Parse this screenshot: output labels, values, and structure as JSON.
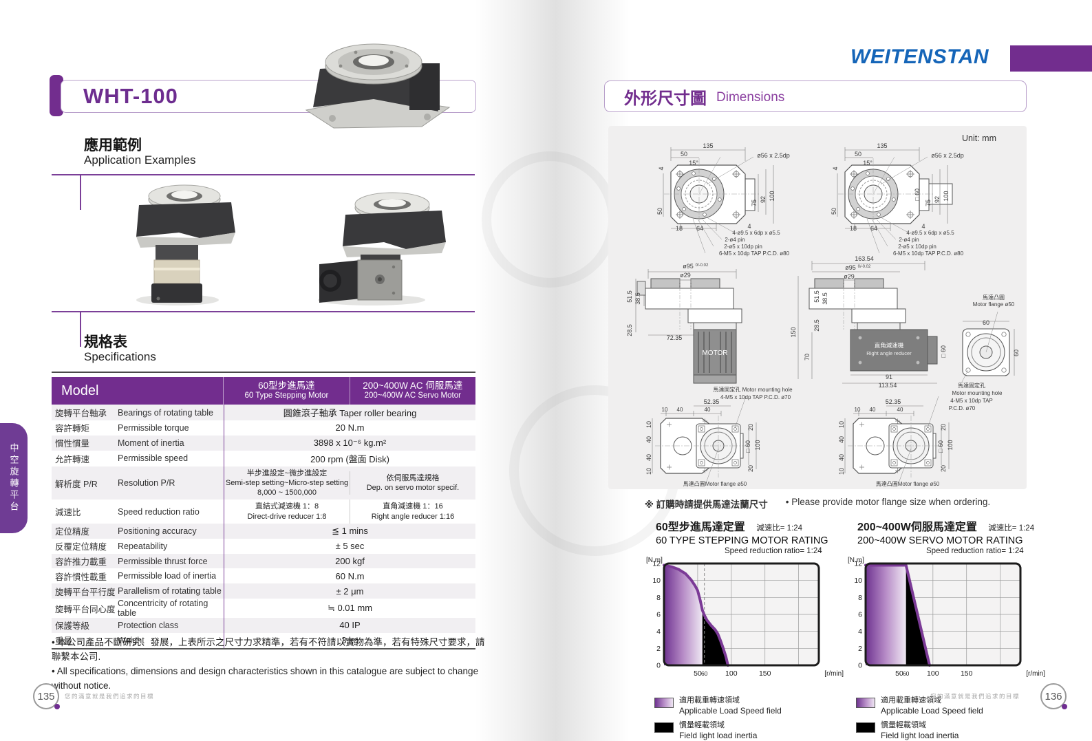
{
  "side_tab": {
    "label": "中空旋轉平台"
  },
  "left_page": {
    "model_title": "WHT-100",
    "app_section": {
      "title_zh": "應用範例",
      "title_en": "Application Examples"
    },
    "spec_section": {
      "title_zh": "規格表",
      "title_en": "Specifications"
    },
    "spec_table": {
      "header": {
        "model": "Model",
        "col1_zh": "60型步進馬達",
        "col1_en": "60 Type Stepping Motor",
        "col2_zh": "200~400W AC 伺服馬達",
        "col2_en": "200~400W AC Servo Motor"
      },
      "rows": [
        {
          "zh": "旋轉平台軸承",
          "en": "Bearings of rotating table",
          "value": "圓錐滾子軸承 Taper roller bearing"
        },
        {
          "zh": "容許轉矩",
          "en": "Permissible torque",
          "value": "20 N.m"
        },
        {
          "zh": "慣性慣量",
          "en": "Moment of inertia",
          "value": "3898 x 10⁻⁶ kg.m²"
        },
        {
          "zh": "允許轉速",
          "en": "Permissible speed",
          "value": "200 rpm (盤面 Disk)"
        },
        {
          "zh": "解析度 P/R",
          "en": "Resolution P/R",
          "col1": [
            "半步進設定~微步進設定",
            "Semi-step setting~Micro-step setting",
            "8,000 ~ 1500,000"
          ],
          "col2": [
            "依伺服馬達規格",
            "Dep. on servo motor specif."
          ]
        },
        {
          "zh": "減速比",
          "en": "Speed reduction ratio",
          "col1": [
            "直結式減速機 1：8",
            "Direct-drive reducer 1:8"
          ],
          "col2": [
            "直角減速機 1：16",
            "Right angle reducer 1:16"
          ]
        },
        {
          "zh": "定位精度",
          "en": "Positioning accuracy",
          "value": "≦ 1 mins"
        },
        {
          "zh": "反覆定位精度",
          "en": "Repeatability",
          "value": "± 5 sec"
        },
        {
          "zh": "容許推力載重",
          "en": "Permissible thrust force",
          "value": "200 kgf"
        },
        {
          "zh": "容許慣性載重",
          "en": "Permissible load of inertia",
          "value": "60 N.m"
        },
        {
          "zh": "旋轉平台平行度",
          "en": "Parallelism of rotating table",
          "value": "± 2 μm"
        },
        {
          "zh": "旋轉平台同心度",
          "en": "Concentricity of rotating table",
          "value": "≒ 0.01 mm"
        },
        {
          "zh": "保護等級",
          "en": "Protection class",
          "value": "40 IP"
        },
        {
          "zh": "重量",
          "en": "Weight",
          "value": "3 kg"
        }
      ]
    },
    "notes": [
      "• 本公司產品不斷研究、發展，上表所示之尺寸力求精準，若有不符請以實物為準，若有特殊尺寸要求，請聯繫本公司.",
      "• All specifications, dimensions and design characteristics shown in this catalogue are subject to change without notice."
    ],
    "page_number": "135",
    "footer_slogan": "您的滿意就是我們追求的目標"
  },
  "right_page": {
    "logo": "WEITENSTAN",
    "dim_section": {
      "title_zh": "外形尺寸圖",
      "title_en": "Dimensions"
    },
    "unit_note": "Unit: mm",
    "order_note_zh": "※ 訂購時請提供馬達法蘭尺寸",
    "order_note_en": "• Please provide motor flange size when ordering.",
    "page_number": "136",
    "footer_slogan": "您的滿意就是我們追求的目標",
    "drawings": {
      "texts": {
        "tl": [
          [
            145,
            32,
            "135"
          ],
          [
            110,
            44,
            "50"
          ],
          [
            124,
            57,
            "15°"
          ],
          [
            240,
            46,
            "ø56 x 2.5dp"
          ],
          [
            80,
            62,
            "4",
            "v"
          ],
          [
            78,
            124,
            "50",
            "v"
          ],
          [
            103,
            152,
            "18"
          ],
          [
            133,
            152,
            "64"
          ],
          [
            205,
            149,
            "4"
          ],
          [
            215,
            112,
            "75",
            "v"
          ],
          [
            228,
            107,
            "92",
            "v"
          ],
          [
            241,
            102,
            "100",
            "v"
          ],
          [
            215,
            158,
            "4-ø9.5 x 6dp x ø5.5",
            0,
            8
          ],
          [
            184,
            168,
            "2-ø4 pin",
            0,
            8
          ],
          [
            196,
            178,
            "2-ø5 x 10dp pin",
            0,
            8
          ],
          [
            212,
            188,
            "6-M5 x 10dp TAP P.C.D. ø80",
            0,
            8
          ]
        ],
        "tr": [
          [
            398,
            32,
            "135"
          ],
          [
            363,
            44,
            "50"
          ],
          [
            377,
            57,
            "15°"
          ],
          [
            493,
            46,
            "ø56 x 2.5dp"
          ],
          [
            333,
            62,
            "4",
            "v"
          ],
          [
            331,
            124,
            "50",
            "v"
          ],
          [
            356,
            152,
            "18"
          ],
          [
            386,
            152,
            "64"
          ],
          [
            458,
            149,
            "4"
          ],
          [
            468,
            112,
            "75",
            "v"
          ],
          [
            481,
            107,
            "92",
            "v"
          ],
          [
            494,
            102,
            "100",
            "v"
          ],
          [
            452,
            100,
            "□ 60",
            "v"
          ],
          [
            468,
            158,
            "4-ø9.5 x 6dp x ø5.5",
            0,
            8
          ],
          [
            437,
            168,
            "2-ø4 pin",
            0,
            8
          ],
          [
            449,
            178,
            "2-ø5 x 10dp pin",
            0,
            8
          ],
          [
            465,
            188,
            "6-M5 x 10dp TAP P.C.D. ø80",
            0,
            8
          ]
        ],
        "ml": [
          [
            116,
            207,
            "ø95",
            0,
            9
          ],
          [
            136,
            204,
            "0/-0.02",
            0,
            6
          ],
          [
            112,
            220,
            "ø29",
            0,
            9
          ],
          [
            34,
            248,
            "51.5",
            "v"
          ],
          [
            46,
            251,
            "38.5",
            "v"
          ],
          [
            34,
            297,
            "28.5",
            "v"
          ],
          [
            96,
            311,
            "72.35",
            0,
            9
          ],
          [
            155,
            333,
            "MOTOR",
            0,
            10,
            "#ffffff"
          ]
        ],
        "mr": [
          [
            372,
            196,
            "163.54",
            0,
            9
          ],
          [
            352,
            209,
            "ø95",
            0,
            9
          ],
          [
            372,
            206,
            "0/-0.02",
            0,
            6
          ],
          [
            350,
            222,
            "ø29",
            0,
            9
          ],
          [
            272,
            300,
            "150",
            "v"
          ],
          [
            306,
            248,
            "51.5",
            "v"
          ],
          [
            318,
            251,
            "38.5",
            "v"
          ],
          [
            306,
            290,
            "28.5",
            "v"
          ],
          [
            292,
            336,
            "70",
            "v"
          ],
          [
            490,
            328,
            "□ 60",
            "v"
          ],
          [
            408,
            368,
            "91",
            0,
            9
          ],
          [
            406,
            380,
            "113.54",
            0,
            9
          ],
          [
            408,
            322,
            "直角減速機",
            0,
            8.5,
            "#ffffff"
          ],
          [
            408,
            333,
            "Right angle reducer",
            0,
            7.5,
            "#eeeeee"
          ]
        ],
        "fl": [
          [
            549,
            289,
            "60",
            0,
            9
          ],
          [
            596,
            330,
            "60",
            "v"
          ],
          [
            560,
            252,
            "馬達凸圓",
            0,
            8
          ],
          [
            560,
            262,
            "Motor flange ø50",
            0,
            8
          ],
          [
            528,
            380,
            "馬達固定孔",
            0,
            8
          ],
          [
            536,
            391,
            "Motor mounting hole",
            0,
            8
          ],
          [
            528,
            402,
            "4-M5 x 10dp TAP",
            0,
            8
          ],
          [
            514,
            413,
            "P.C.D. ø70",
            0,
            8
          ]
        ],
        "bl": [
          [
            150,
            404,
            "52.35",
            0,
            9
          ],
          [
            82,
            415,
            "10",
            0,
            8
          ],
          [
            104,
            415,
            "40",
            0,
            8
          ],
          [
            144,
            415,
            "40",
            0,
            8
          ],
          [
            62,
            434,
            "10",
            "v"
          ],
          [
            62,
            456,
            "40",
            "v"
          ],
          [
            62,
            482,
            "40",
            "v"
          ],
          [
            62,
            502,
            "10",
            "v"
          ],
          [
            210,
            438,
            "20",
            "v"
          ],
          [
            206,
            466,
            "□ 60",
            "v"
          ],
          [
            220,
            464,
            "100",
            "v"
          ],
          [
            210,
            498,
            "20",
            "v"
          ],
          [
            210,
            386,
            "馬達固定孔  Motor mounting hole",
            0,
            8
          ],
          [
            214,
            397,
            "4-M5 x 10dp TAP P.C.D. ø70",
            0,
            8
          ],
          [
            155,
            523,
            "馬達凸圓Motor flange ø50",
            0,
            8
          ]
        ],
        "br": [
          [
            414,
            404,
            "52.35",
            0,
            9
          ],
          [
            362,
            415,
            "10",
            0,
            8
          ],
          [
            384,
            415,
            "40",
            0,
            8
          ],
          [
            424,
            415,
            "40",
            0,
            8
          ],
          [
            342,
            434,
            "10",
            "v"
          ],
          [
            342,
            456,
            "40",
            "v"
          ],
          [
            342,
            482,
            "40",
            "v"
          ],
          [
            342,
            502,
            "10",
            "v"
          ],
          [
            490,
            438,
            "20",
            "v"
          ],
          [
            486,
            466,
            "□ 60",
            "v"
          ],
          [
            500,
            464,
            "100",
            "v"
          ],
          [
            490,
            498,
            "20",
            "v"
          ],
          [
            435,
            523,
            "馬達凸圓Motor flange ø50",
            0,
            8
          ]
        ]
      }
    }
  },
  "chart_data": [
    {
      "type": "area",
      "title_zh": "60型步進馬達定置",
      "ratio_zh": "減速比= 1:24",
      "title_en": "60 TYPE STEPPING MOTOR RATING",
      "ratio_en": "Speed reduction ratio= 1:24",
      "ylabel": "[N.m]",
      "xlabel": "[r/min]",
      "xlim": [
        0,
        230
      ],
      "ylim": [
        0,
        12
      ],
      "xticks": [
        50,
        60,
        100,
        150
      ],
      "yticks": [
        0,
        2,
        4,
        6,
        8,
        10,
        12
      ],
      "xgrid": [
        50,
        100,
        150,
        200
      ],
      "dashed_x": 60,
      "curve": [
        [
          0,
          11.8
        ],
        [
          12,
          11.6
        ],
        [
          22,
          11.3
        ],
        [
          32,
          10.8
        ],
        [
          40,
          10.1
        ],
        [
          46,
          9.4
        ],
        [
          50,
          8.8
        ],
        [
          54,
          7.6
        ],
        [
          57,
          6.5
        ],
        [
          60,
          5.9
        ],
        [
          64,
          5.3
        ],
        [
          70,
          4.7
        ],
        [
          76,
          4.2
        ],
        [
          80,
          3.7
        ],
        [
          84,
          2.9
        ],
        [
          88,
          2.0
        ],
        [
          92,
          1.0
        ],
        [
          95,
          0
        ]
      ],
      "black_from": 57,
      "legend": [
        {
          "swatch": "gradient",
          "zh": "適用載重轉速領域",
          "en": "Applicable Load Speed field"
        },
        {
          "swatch": "black",
          "zh": "慣量輕載領域",
          "en": "Field light load inertia"
        }
      ]
    },
    {
      "type": "area",
      "title_zh": "200~400W伺服馬達定置",
      "ratio_zh": "減速比= 1:24",
      "title_en": "200~400W SERVO MOTOR RATING",
      "ratio_en": "Speed reduction ratio= 1:24",
      "ylabel": "[N.m]",
      "xlabel": "[r/min]",
      "xlim": [
        0,
        230
      ],
      "ylim": [
        0,
        12
      ],
      "xticks": [
        50,
        60,
        100,
        150
      ],
      "yticks": [
        0,
        2,
        4,
        6,
        8,
        10,
        12
      ],
      "xgrid": [
        50,
        100,
        150,
        200
      ],
      "curve": [
        [
          0,
          11.8
        ],
        [
          60,
          11.8
        ],
        [
          95,
          0
        ]
      ],
      "black_from": 60,
      "legend": [
        {
          "swatch": "gradient",
          "zh": "適用載重轉速領域",
          "en": "Applicable Load Speed field"
        },
        {
          "swatch": "black",
          "zh": "慣量輕載領域",
          "en": "Field light load inertia"
        }
      ]
    }
  ]
}
